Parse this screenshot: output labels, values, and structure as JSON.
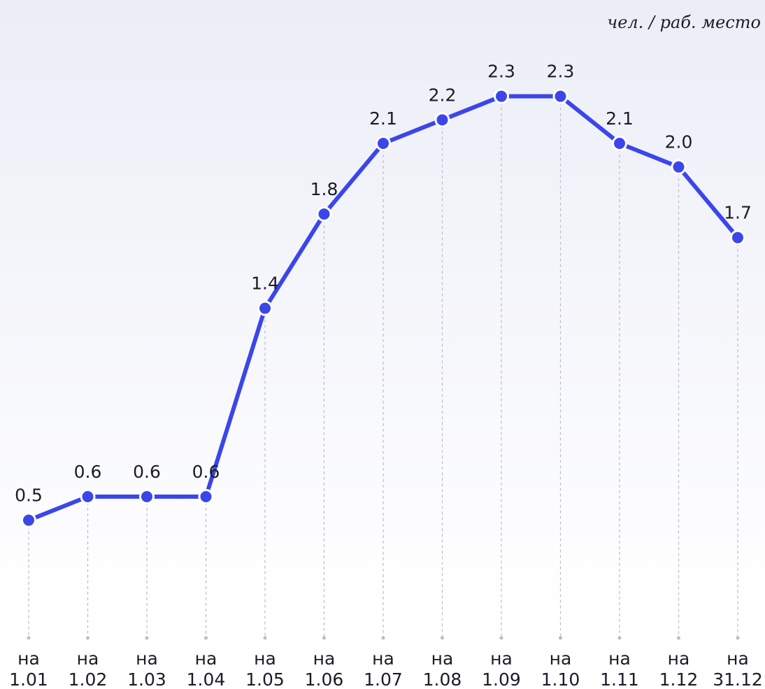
{
  "chart_data": {
    "type": "line",
    "unit_label": "чел. / раб. место",
    "categories": [
      [
        "на",
        "1.01"
      ],
      [
        "на",
        "1.02"
      ],
      [
        "на",
        "1.03"
      ],
      [
        "на",
        "1.04"
      ],
      [
        "на",
        "1.05"
      ],
      [
        "на",
        "1.06"
      ],
      [
        "на",
        "1.07"
      ],
      [
        "на",
        "1.08"
      ],
      [
        "на",
        "1.09"
      ],
      [
        "на",
        "1.10"
      ],
      [
        "на",
        "1.11"
      ],
      [
        "на",
        "1.12"
      ],
      [
        "на",
        "31.12"
      ]
    ],
    "values": [
      0.5,
      0.6,
      0.6,
      0.6,
      1.4,
      1.8,
      2.1,
      2.2,
      2.3,
      2.3,
      2.1,
      2.0,
      1.7
    ],
    "value_labels": [
      "0.5",
      "0.6",
      "0.6",
      "0.6",
      "1.4",
      "1.8",
      "2.1",
      "2.2",
      "2.3",
      "2.3",
      "2.1",
      "2.0",
      "1.7"
    ],
    "color": "#3b46ea",
    "ylim": [
      0,
      2.7
    ]
  }
}
